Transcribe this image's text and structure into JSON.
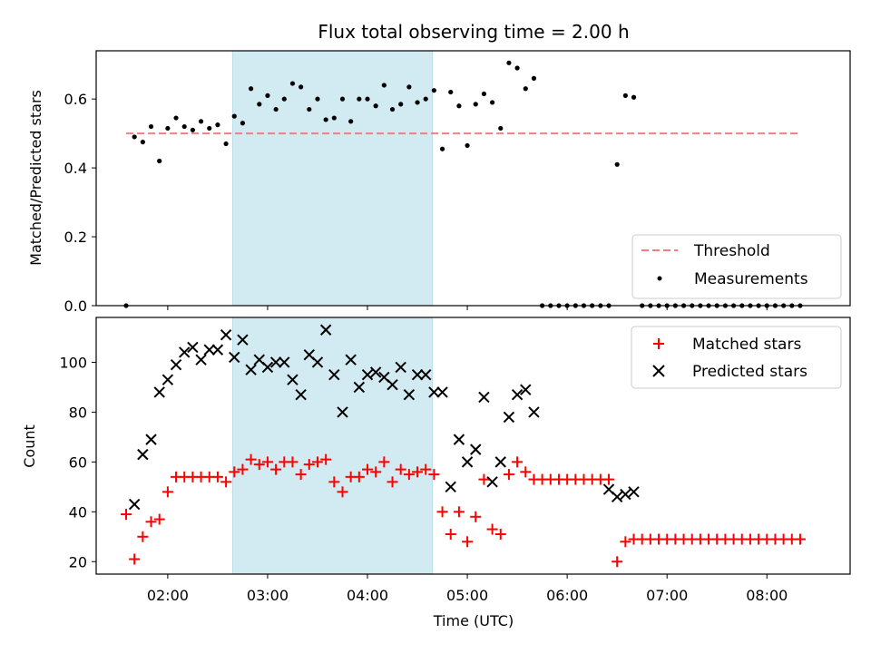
{
  "chart_data": [
    {
      "panel": "top",
      "type": "scatter",
      "title": "Flux total observing time = 2.00 h",
      "xlabel": "",
      "ylabel": "Matched/Predicted stars",
      "xlim": [
        "01:17",
        "08:50"
      ],
      "ylim": [
        0,
        0.74
      ],
      "yticks": [
        0.0,
        0.2,
        0.4,
        0.6
      ],
      "ytick_labels": [
        "0.0",
        "0.2",
        "0.4",
        "0.6"
      ],
      "shaded_span": {
        "start": "02:39",
        "end": "04:39",
        "color": "#add8e6"
      },
      "legend": {
        "position": "lower right"
      },
      "series": [
        {
          "name": "Threshold",
          "style": "dashed-line",
          "color": "#f08080",
          "x": [
            "01:35",
            "08:20"
          ],
          "y": [
            0.5,
            0.5
          ]
        },
        {
          "name": "Measurements",
          "style": "dot",
          "color": "#000000",
          "points": [
            [
              "01:35",
              0.0
            ],
            [
              "01:40",
              0.49
            ],
            [
              "01:45",
              0.475
            ],
            [
              "01:50",
              0.52
            ],
            [
              "01:55",
              0.42
            ],
            [
              "02:00",
              0.515
            ],
            [
              "02:05",
              0.545
            ],
            [
              "02:10",
              0.52
            ],
            [
              "02:15",
              0.51
            ],
            [
              "02:20",
              0.535
            ],
            [
              "02:25",
              0.515
            ],
            [
              "02:30",
              0.525
            ],
            [
              "02:35",
              0.47
            ],
            [
              "02:40",
              0.55
            ],
            [
              "02:45",
              0.53
            ],
            [
              "02:50",
              0.63
            ],
            [
              "02:55",
              0.585
            ],
            [
              "03:00",
              0.61
            ],
            [
              "03:05",
              0.57
            ],
            [
              "03:10",
              0.6
            ],
            [
              "03:15",
              0.645
            ],
            [
              "03:20",
              0.635
            ],
            [
              "03:25",
              0.57
            ],
            [
              "03:30",
              0.6
            ],
            [
              "03:35",
              0.54
            ],
            [
              "03:40",
              0.545
            ],
            [
              "03:45",
              0.6
            ],
            [
              "03:50",
              0.535
            ],
            [
              "03:55",
              0.6
            ],
            [
              "04:00",
              0.6
            ],
            [
              "04:05",
              0.58
            ],
            [
              "04:10",
              0.64
            ],
            [
              "04:15",
              0.57
            ],
            [
              "04:20",
              0.585
            ],
            [
              "04:25",
              0.635
            ],
            [
              "04:30",
              0.59
            ],
            [
              "04:35",
              0.6
            ],
            [
              "04:40",
              0.625
            ],
            [
              "04:45",
              0.455
            ],
            [
              "04:50",
              0.62
            ],
            [
              "04:55",
              0.58
            ],
            [
              "05:00",
              0.465
            ],
            [
              "05:05",
              0.585
            ],
            [
              "05:10",
              0.615
            ],
            [
              "05:15",
              0.59
            ],
            [
              "05:20",
              0.515
            ],
            [
              "05:25",
              0.705
            ],
            [
              "05:30",
              0.69
            ],
            [
              "05:35",
              0.63
            ],
            [
              "05:40",
              0.66
            ],
            [
              "05:45",
              0.0
            ],
            [
              "05:50",
              0.0
            ],
            [
              "05:55",
              0.0
            ],
            [
              "06:00",
              0.0
            ],
            [
              "06:05",
              0.0
            ],
            [
              "06:10",
              0.0
            ],
            [
              "06:15",
              0.0
            ],
            [
              "06:20",
              0.0
            ],
            [
              "06:25",
              0.0
            ],
            [
              "06:30",
              0.41
            ],
            [
              "06:35",
              0.61
            ],
            [
              "06:40",
              0.605
            ],
            [
              "06:45",
              0.0
            ],
            [
              "06:50",
              0.0
            ],
            [
              "06:55",
              0.0
            ],
            [
              "07:00",
              0.0
            ],
            [
              "07:05",
              0.0
            ],
            [
              "07:10",
              0.0
            ],
            [
              "07:15",
              0.0
            ],
            [
              "07:20",
              0.0
            ],
            [
              "07:25",
              0.0
            ],
            [
              "07:30",
              0.0
            ],
            [
              "07:35",
              0.0
            ],
            [
              "07:40",
              0.0
            ],
            [
              "07:45",
              0.0
            ],
            [
              "07:50",
              0.0
            ],
            [
              "07:55",
              0.0
            ],
            [
              "08:00",
              0.0
            ],
            [
              "08:05",
              0.0
            ],
            [
              "08:10",
              0.0
            ],
            [
              "08:15",
              0.0
            ],
            [
              "08:20",
              0.0
            ]
          ]
        }
      ]
    },
    {
      "panel": "bottom",
      "type": "scatter",
      "xlabel": "Time (UTC)",
      "ylabel": "Count",
      "xlim": [
        "01:17",
        "08:50"
      ],
      "ylim": [
        15,
        118
      ],
      "yticks": [
        20,
        40,
        60,
        80,
        100
      ],
      "ytick_labels": [
        "20",
        "40",
        "60",
        "80",
        "100"
      ],
      "xticks": [
        "02:00",
        "03:00",
        "04:00",
        "05:00",
        "06:00",
        "07:00",
        "08:00"
      ],
      "xtick_labels": [
        "02:00",
        "03:00",
        "04:00",
        "05:00",
        "06:00",
        "07:00",
        "08:00"
      ],
      "shaded_span": {
        "start": "02:39",
        "end": "04:39",
        "color": "#add8e6"
      },
      "legend": {
        "position": "upper right"
      },
      "series": [
        {
          "name": "Matched stars",
          "marker": "plus",
          "color": "#ff0000",
          "points": [
            [
              "01:35",
              39
            ],
            [
              "01:40",
              21
            ],
            [
              "01:45",
              30
            ],
            [
              "01:50",
              36
            ],
            [
              "01:55",
              37
            ],
            [
              "02:00",
              48
            ],
            [
              "02:05",
              54
            ],
            [
              "02:10",
              54
            ],
            [
              "02:15",
              54
            ],
            [
              "02:20",
              54
            ],
            [
              "02:25",
              54
            ],
            [
              "02:30",
              54
            ],
            [
              "02:35",
              52
            ],
            [
              "02:40",
              56
            ],
            [
              "02:45",
              57
            ],
            [
              "02:50",
              61
            ],
            [
              "02:55",
              59
            ],
            [
              "03:00",
              60
            ],
            [
              "03:05",
              57
            ],
            [
              "03:10",
              60
            ],
            [
              "03:15",
              60
            ],
            [
              "03:20",
              55
            ],
            [
              "03:25",
              59
            ],
            [
              "03:30",
              60
            ],
            [
              "03:35",
              61
            ],
            [
              "03:40",
              52
            ],
            [
              "03:45",
              48
            ],
            [
              "03:50",
              54
            ],
            [
              "03:55",
              54
            ],
            [
              "04:00",
              57
            ],
            [
              "04:05",
              56
            ],
            [
              "04:10",
              60
            ],
            [
              "04:15",
              52
            ],
            [
              "04:20",
              57
            ],
            [
              "04:25",
              55
            ],
            [
              "04:30",
              56
            ],
            [
              "04:35",
              57
            ],
            [
              "04:40",
              55
            ],
            [
              "04:45",
              40
            ],
            [
              "04:50",
              31
            ],
            [
              "04:55",
              40
            ],
            [
              "05:00",
              28
            ],
            [
              "05:05",
              38
            ],
            [
              "05:10",
              53
            ],
            [
              "05:15",
              33
            ],
            [
              "05:20",
              31
            ],
            [
              "05:25",
              55
            ],
            [
              "05:30",
              60
            ],
            [
              "05:35",
              56
            ],
            [
              "05:40",
              53
            ],
            [
              "05:45",
              53
            ],
            [
              "05:50",
              53
            ],
            [
              "05:55",
              53
            ],
            [
              "06:00",
              53
            ],
            [
              "06:05",
              53
            ],
            [
              "06:10",
              53
            ],
            [
              "06:15",
              53
            ],
            [
              "06:20",
              53
            ],
            [
              "06:25",
              53
            ],
            [
              "06:30",
              20
            ],
            [
              "06:35",
              28
            ],
            [
              "06:40",
              29
            ],
            [
              "06:45",
              29
            ],
            [
              "06:50",
              29
            ],
            [
              "06:55",
              29
            ],
            [
              "07:00",
              29
            ],
            [
              "07:05",
              29
            ],
            [
              "07:10",
              29
            ],
            [
              "07:15",
              29
            ],
            [
              "07:20",
              29
            ],
            [
              "07:25",
              29
            ],
            [
              "07:30",
              29
            ],
            [
              "07:35",
              29
            ],
            [
              "07:40",
              29
            ],
            [
              "07:45",
              29
            ],
            [
              "07:50",
              29
            ],
            [
              "07:55",
              29
            ],
            [
              "08:00",
              29
            ],
            [
              "08:05",
              29
            ],
            [
              "08:10",
              29
            ],
            [
              "08:15",
              29
            ],
            [
              "08:20",
              29
            ]
          ]
        },
        {
          "name": "Predicted stars",
          "marker": "x",
          "color": "#000000",
          "points": [
            [
              "01:40",
              43
            ],
            [
              "01:45",
              63
            ],
            [
              "01:50",
              69
            ],
            [
              "01:55",
              88
            ],
            [
              "02:00",
              93
            ],
            [
              "02:05",
              99
            ],
            [
              "02:10",
              104
            ],
            [
              "02:15",
              106
            ],
            [
              "02:20",
              101
            ],
            [
              "02:25",
              105
            ],
            [
              "02:30",
              105
            ],
            [
              "02:35",
              111
            ],
            [
              "02:40",
              102
            ],
            [
              "02:45",
              109
            ],
            [
              "02:50",
              97
            ],
            [
              "02:55",
              101
            ],
            [
              "03:00",
              98
            ],
            [
              "03:05",
              100
            ],
            [
              "03:10",
              100
            ],
            [
              "03:15",
              93
            ],
            [
              "03:20",
              87
            ],
            [
              "03:25",
              103
            ],
            [
              "03:30",
              100
            ],
            [
              "03:35",
              113
            ],
            [
              "03:40",
              95
            ],
            [
              "03:45",
              80
            ],
            [
              "03:50",
              101
            ],
            [
              "03:55",
              90
            ],
            [
              "04:00",
              95
            ],
            [
              "04:05",
              96
            ],
            [
              "04:10",
              94
            ],
            [
              "04:15",
              91
            ],
            [
              "04:20",
              98
            ],
            [
              "04:25",
              87
            ],
            [
              "04:30",
              95
            ],
            [
              "04:35",
              95
            ],
            [
              "04:40",
              88
            ],
            [
              "04:45",
              88
            ],
            [
              "04:50",
              50
            ],
            [
              "04:55",
              69
            ],
            [
              "05:00",
              60
            ],
            [
              "05:05",
              65
            ],
            [
              "05:10",
              86
            ],
            [
              "05:15",
              52
            ],
            [
              "05:20",
              60
            ],
            [
              "05:25",
              78
            ],
            [
              "05:30",
              87
            ],
            [
              "05:35",
              89
            ],
            [
              "05:40",
              80
            ],
            [
              "06:25",
              49
            ],
            [
              "06:30",
              46
            ],
            [
              "06:35",
              47
            ],
            [
              "06:40",
              48
            ]
          ]
        }
      ]
    }
  ]
}
